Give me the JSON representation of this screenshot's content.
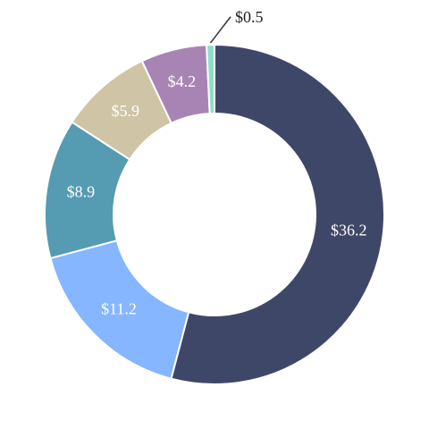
{
  "chart_data": {
    "type": "pie",
    "variant": "donut",
    "categories": [
      "",
      "",
      "",
      "",
      "",
      ""
    ],
    "values": [
      36.2,
      11.2,
      8.9,
      5.9,
      4.2,
      0.5
    ],
    "labels": [
      "$36.2",
      "$11.2",
      "$8.9",
      "$5.9",
      "$4.2",
      "$0.5"
    ],
    "colors": [
      "#3f4769",
      "#85b6ff",
      "#559bb1",
      "#cfc4a6",
      "#a884b4",
      "#8de0c8"
    ],
    "start_angle_deg": 0,
    "direction": "clockwise",
    "title": "",
    "legend": "none"
  }
}
